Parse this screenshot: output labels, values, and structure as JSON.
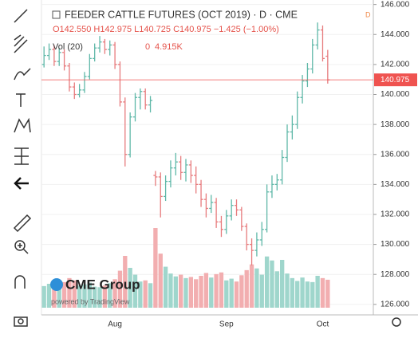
{
  "chart_data": {
    "type": "ohlc",
    "title": "FEEDER CATTLE FUTURES (OCT 2019) · D · CME",
    "interval": "D",
    "ohlc_legend": "O142.550 H142.975 L140.725 C140.975 −1.425 (−1.00%)",
    "volume_label": "Vol (20)",
    "volume_ma_label": "0",
    "volume_value_label": "4.915K",
    "logo": "CME Group",
    "powered_by": "powered by TradingView",
    "up_color": "#5fb8a8",
    "down_color": "#e77b7d",
    "up_volume_color": "#9fd6cc",
    "down_volume_color": "#f2aeb0",
    "last_price_color": "#ef5350",
    "categories": [
      null,
      null,
      null,
      null,
      null,
      null,
      null,
      null,
      null,
      null,
      null,
      null,
      null,
      null,
      "Aug",
      null,
      null,
      null,
      null,
      null,
      null,
      null,
      null,
      null,
      null,
      null,
      null,
      null,
      null,
      null,
      null,
      null,
      null,
      null,
      null,
      null,
      "Sep",
      null,
      null,
      null,
      null,
      null,
      null,
      null,
      null,
      null,
      null,
      null,
      null,
      null,
      null,
      null,
      null,
      null,
      null,
      "Oct",
      null
    ],
    "open": [
      142.0,
      142.6,
      143.0,
      142.2,
      142.8,
      141.9,
      140.5,
      140.0,
      140.3,
      141.2,
      142.4,
      143.1,
      143.5,
      143.0,
      143.3,
      142.0,
      139.5,
      136.0,
      138.5,
      139.8,
      140.2,
      139.3,
      134.6,
      134.5,
      133.2,
      134.2,
      135.1,
      135.5,
      134.8,
      135.3,
      134.6,
      134.0,
      133.0,
      132.4,
      132.8,
      131.5,
      131.0,
      131.9,
      132.6,
      132.3,
      131.2,
      130.0,
      129.6,
      130.3,
      131.0,
      133.5,
      134.0,
      134.3,
      135.8,
      137.5,
      138.0,
      139.8,
      140.9,
      141.7,
      143.3,
      144.3,
      142.55
    ],
    "high": [
      143.2,
      143.4,
      143.3,
      143.1,
      143.0,
      142.1,
      140.8,
      140.7,
      141.5,
      142.7,
      143.4,
      143.9,
      143.7,
      143.6,
      143.5,
      142.2,
      139.8,
      138.8,
      140.1,
      140.4,
      140.4,
      139.9,
      134.9,
      134.8,
      134.6,
      135.6,
      136.1,
      135.9,
      135.7,
      135.6,
      135.2,
      134.3,
      133.4,
      133.3,
      133.1,
      131.9,
      132.3,
      133.0,
      133.0,
      132.5,
      131.4,
      130.4,
      130.8,
      131.5,
      134.0,
      134.6,
      134.7,
      136.3,
      138.0,
      138.6,
      140.2,
      141.3,
      142.1,
      143.7,
      144.8,
      144.6,
      142.975
    ],
    "low": [
      141.8,
      142.3,
      141.9,
      141.9,
      141.6,
      140.2,
      139.7,
      139.8,
      140.1,
      141.0,
      142.2,
      142.8,
      142.7,
      142.6,
      141.7,
      139.2,
      135.2,
      135.8,
      138.2,
      139.0,
      139.0,
      138.8,
      133.9,
      131.8,
      132.9,
      133.8,
      134.6,
      134.3,
      134.2,
      134.1,
      133.4,
      132.5,
      131.8,
      132.1,
      131.1,
      130.5,
      130.7,
      131.6,
      131.9,
      130.9,
      129.6,
      128.6,
      129.2,
      129.9,
      130.8,
      133.1,
      133.6,
      134.0,
      135.5,
      137.0,
      137.7,
      139.4,
      140.5,
      141.4,
      143.0,
      142.2,
      140.725
    ],
    "close": [
      142.6,
      143.0,
      142.2,
      142.8,
      141.9,
      140.5,
      140.0,
      140.3,
      141.2,
      142.4,
      143.1,
      143.5,
      143.0,
      143.3,
      142.0,
      139.5,
      136.0,
      138.5,
      139.8,
      140.2,
      139.3,
      139.6,
      134.5,
      133.2,
      134.2,
      135.1,
      135.5,
      134.8,
      135.3,
      134.6,
      134.0,
      133.0,
      132.4,
      132.8,
      131.5,
      131.0,
      131.9,
      132.6,
      132.3,
      131.2,
      130.0,
      129.6,
      130.3,
      131.0,
      133.5,
      134.0,
      134.3,
      135.8,
      137.5,
      138.0,
      139.8,
      140.9,
      141.7,
      143.3,
      144.3,
      142.4,
      140.975
    ],
    "volume": [
      3800,
      4200,
      3500,
      4000,
      4500,
      5200,
      4800,
      3900,
      4100,
      4400,
      3700,
      3600,
      3900,
      4300,
      5000,
      6500,
      9100,
      7000,
      5800,
      4600,
      4800,
      4300,
      14000,
      9500,
      7200,
      6000,
      5500,
      5800,
      5200,
      5400,
      5000,
      5600,
      6100,
      5300,
      5900,
      6200,
      4800,
      5100,
      4600,
      5700,
      6600,
      7600,
      6900,
      5800,
      9000,
      8300,
      6400,
      8400,
      6000,
      5200,
      4700,
      5300,
      4600,
      4500,
      5600,
      5200,
      4915
    ],
    "ylim": [
      125.3,
      146.3
    ],
    "yticks": [
      {
        "value": 126,
        "label": "126.000"
      },
      {
        "value": 128,
        "label": "128.000"
      },
      {
        "value": 130,
        "label": "130.000"
      },
      {
        "value": 132,
        "label": "132.000"
      },
      {
        "value": 134,
        "label": "134.000"
      },
      {
        "value": 136,
        "label": "136.000"
      },
      {
        "value": 138,
        "label": "138.000"
      },
      {
        "value": 140,
        "label": "140.000"
      },
      {
        "value": 142,
        "label": "142.000"
      },
      {
        "value": 144,
        "label": "144.000"
      },
      {
        "value": 146,
        "label": "146.000"
      }
    ]
  }
}
